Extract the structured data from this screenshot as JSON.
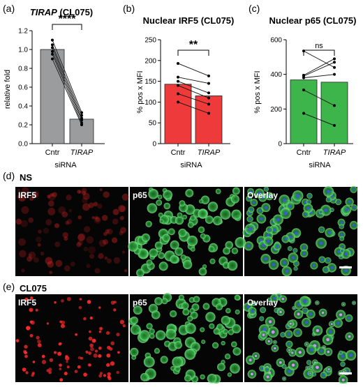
{
  "chart_data": [
    {
      "type": "bar",
      "panel": "(a)",
      "title": "TIRAP (CL075)",
      "title_italic": "TIRAP",
      "title_rest": " (CL075)",
      "ylabel": "relative fold",
      "xlabel": "siRNA",
      "categories": [
        "Cntr",
        "TIRAP"
      ],
      "category_italic": [
        false,
        true
      ],
      "values": [
        1.0,
        0.26
      ],
      "bar_color": "#9a9c9e",
      "ylim": [
        0,
        1.2
      ],
      "yticks": [
        0.0,
        0.2,
        0.4,
        0.6,
        0.8,
        1.0,
        1.2
      ],
      "ytick_labels": [
        "0.0",
        "0.2",
        "0.4",
        "0.6",
        "0.8",
        "1.0",
        "1.2"
      ],
      "paired_points": [
        [
          1.1,
          0.33
        ],
        [
          1.05,
          0.3
        ],
        [
          1.02,
          0.27
        ],
        [
          0.98,
          0.25
        ],
        [
          0.95,
          0.22
        ],
        [
          0.9,
          0.2
        ]
      ],
      "significance": "****"
    },
    {
      "type": "bar",
      "panel": "(b)",
      "title": "Nuclear IRF5 (CL075)",
      "ylabel": "% pos x MFI",
      "xlabel": "siRNA",
      "categories": [
        "Cntr",
        "TIRAP"
      ],
      "category_italic": [
        false,
        true
      ],
      "values": [
        143,
        115
      ],
      "bar_color": "#ee3a3a",
      "ylim": [
        0,
        250
      ],
      "yticks": [
        0,
        50,
        100,
        150,
        200,
        250
      ],
      "ytick_labels": [
        "0",
        "50",
        "100",
        "150",
        "200",
        "250"
      ],
      "paired_points": [
        [
          193,
          163
        ],
        [
          160,
          145
        ],
        [
          150,
          122
        ],
        [
          140,
          110
        ],
        [
          120,
          95
        ],
        [
          100,
          73
        ]
      ],
      "significance": "**"
    },
    {
      "type": "bar",
      "panel": "(c)",
      "title": "Nuclear p65 (CL075)",
      "ylabel": "% pos x MFI",
      "xlabel": "siRNA",
      "categories": [
        "Cntr",
        "TIRAP"
      ],
      "category_italic": [
        false,
        true
      ],
      "values": [
        368,
        355
      ],
      "bar_color": "#3db54a",
      "ylim": [
        0,
        600
      ],
      "yticks": [
        0,
        200,
        400,
        600
      ],
      "ytick_labels": [
        "0",
        "200",
        "400",
        "600"
      ],
      "paired_points": [
        [
          535,
          440
        ],
        [
          395,
          490
        ],
        [
          390,
          470
        ],
        [
          380,
          400
        ],
        [
          310,
          220
        ],
        [
          175,
          105
        ]
      ],
      "significance": "ns"
    }
  ],
  "micrographs": {
    "rows": [
      {
        "panel": "(d)",
        "condition": "NS",
        "labels": [
          "IRF5",
          "p65",
          "Overlay"
        ]
      },
      {
        "panel": "(e)",
        "condition": "CL075",
        "labels": [
          "IRF5",
          "p65",
          "Overlay"
        ]
      }
    ],
    "colors": {
      "red": "#ff2a2a",
      "green": "#2fbf3a",
      "blue": "#3b5bd9",
      "background": "#050505"
    }
  }
}
